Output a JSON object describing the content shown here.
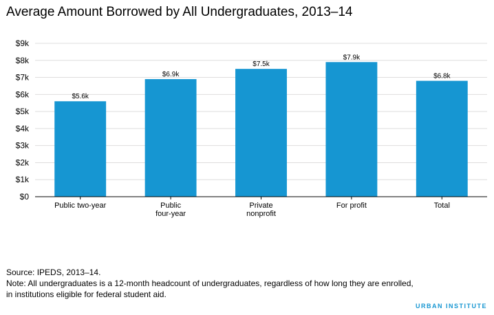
{
  "chart_data": {
    "type": "bar",
    "title": "Average Amount Borrowed by All Undergraduates, 2013–14",
    "xlabel": "",
    "ylabel": "",
    "categories": [
      [
        "Public two-year"
      ],
      [
        "Public",
        "four-year"
      ],
      [
        "Private",
        "nonprofit"
      ],
      [
        "For profit"
      ],
      [
        "Total"
      ]
    ],
    "values": [
      5.6,
      6.9,
      7.5,
      7.9,
      6.8
    ],
    "data_labels": [
      "$5.6k",
      "$6.9k",
      "$7.5k",
      "$7.9k",
      "$6.8k"
    ],
    "ylim": [
      0,
      9
    ],
    "yticks": [
      {
        "value": 0,
        "label": "$0"
      },
      {
        "value": 1,
        "label": "$1k"
      },
      {
        "value": 2,
        "label": "$2k"
      },
      {
        "value": 3,
        "label": "$3k"
      },
      {
        "value": 4,
        "label": "$4k"
      },
      {
        "value": 5,
        "label": "$5k"
      },
      {
        "value": 6,
        "label": "$6k"
      },
      {
        "value": 7,
        "label": "$7k"
      },
      {
        "value": 8,
        "label": "$8k"
      },
      {
        "value": 9,
        "label": "$9k"
      }
    ],
    "grid": true,
    "bar_color": "#1696d2",
    "grid_color": "#dedddd"
  },
  "footer": {
    "source": "Source: IPEDS, 2013–14.",
    "note": "Note: All undergraduates is a 12-month headcount of undergraduates, regardless of how long they are enrolled, in institutions eligible for federal student aid.",
    "brand": "URBAN INSTITUTE"
  }
}
